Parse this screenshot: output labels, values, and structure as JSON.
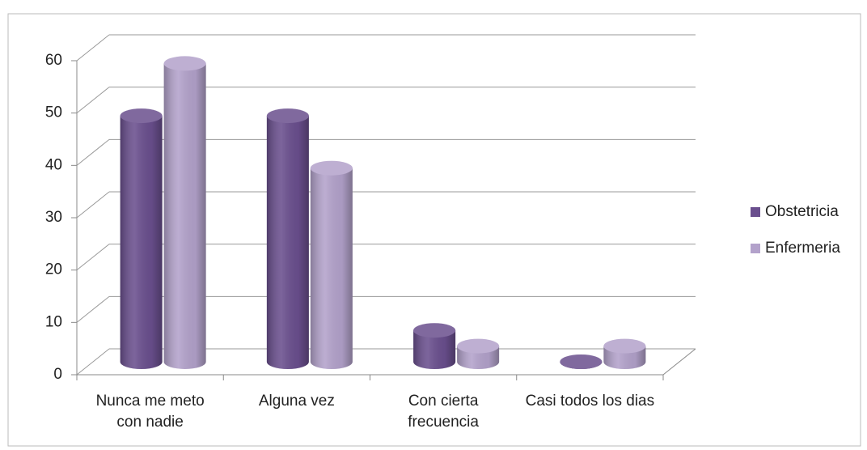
{
  "chart_data": {
    "type": "bar3d",
    "categories": [
      "Nunca me meto con nadie",
      "Alguna vez",
      "Con cierta frecuencia",
      "Casi todos los dias"
    ],
    "series": [
      {
        "name": "Obstetricia",
        "color": "#6a4f8e",
        "values": [
          47,
          47,
          6,
          0
        ]
      },
      {
        "name": "Enfermeria",
        "color": "#b3a2cb",
        "values": [
          57,
          37,
          3,
          3
        ]
      }
    ],
    "ylim": [
      0,
      60
    ],
    "yticks": [
      0,
      10,
      20,
      30,
      40,
      50,
      60
    ],
    "grid": true,
    "legend": "right"
  }
}
